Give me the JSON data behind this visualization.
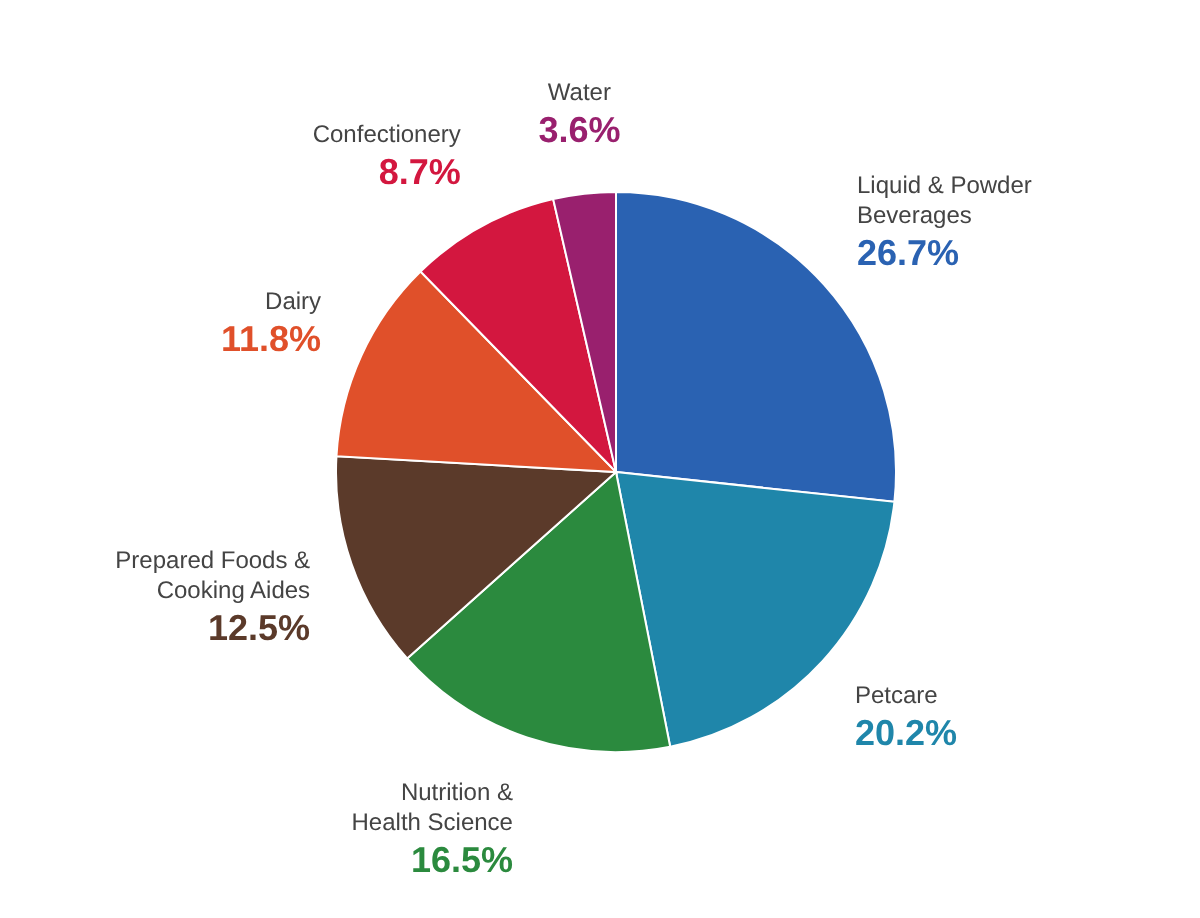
{
  "chart_data": {
    "type": "pie",
    "categories": [
      "Liquid & Powder Beverages",
      "Petcare",
      "Nutrition & Health Science",
      "Prepared Foods & Cooking Aides",
      "Dairy",
      "Confectionery",
      "Water"
    ],
    "values": [
      26.7,
      20.2,
      16.5,
      12.5,
      11.8,
      8.7,
      3.6
    ],
    "colors": [
      "#2a62b2",
      "#1f86aa",
      "#2b8a3e",
      "#5b3a2a",
      "#e0502a",
      "#d3173f",
      "#99206e"
    ],
    "value_labels": [
      "26.7%",
      "20.2%",
      "16.5%",
      "12.5%",
      "11.8%",
      "8.7%",
      "3.6%"
    ]
  }
}
